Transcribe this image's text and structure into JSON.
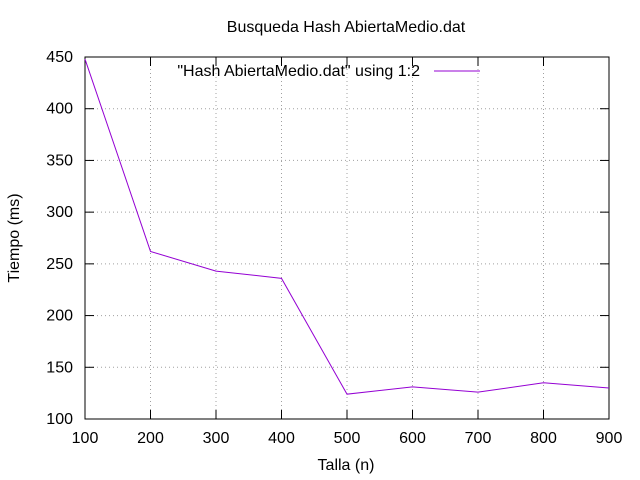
{
  "chart_data": {
    "type": "line",
    "title": "Busqueda Hash AbiertaMedio.dat",
    "xlabel": "Talla (n)",
    "ylabel": "Tiempo (ms)",
    "xlim": [
      100,
      900
    ],
    "ylim": [
      100,
      450
    ],
    "xticks": [
      100,
      200,
      300,
      400,
      500,
      600,
      700,
      800,
      900
    ],
    "yticks": [
      100,
      150,
      200,
      250,
      300,
      350,
      400,
      450
    ],
    "grid": true,
    "legend_position": "top-right",
    "series": [
      {
        "name": "\"Hash AbiertaMedio.dat\" using 1:2",
        "color": "#9400d3",
        "x": [
          100,
          200,
          300,
          400,
          500,
          600,
          700,
          800,
          900
        ],
        "y": [
          448,
          262,
          243,
          236,
          124,
          131,
          126,
          135,
          130
        ]
      }
    ]
  }
}
